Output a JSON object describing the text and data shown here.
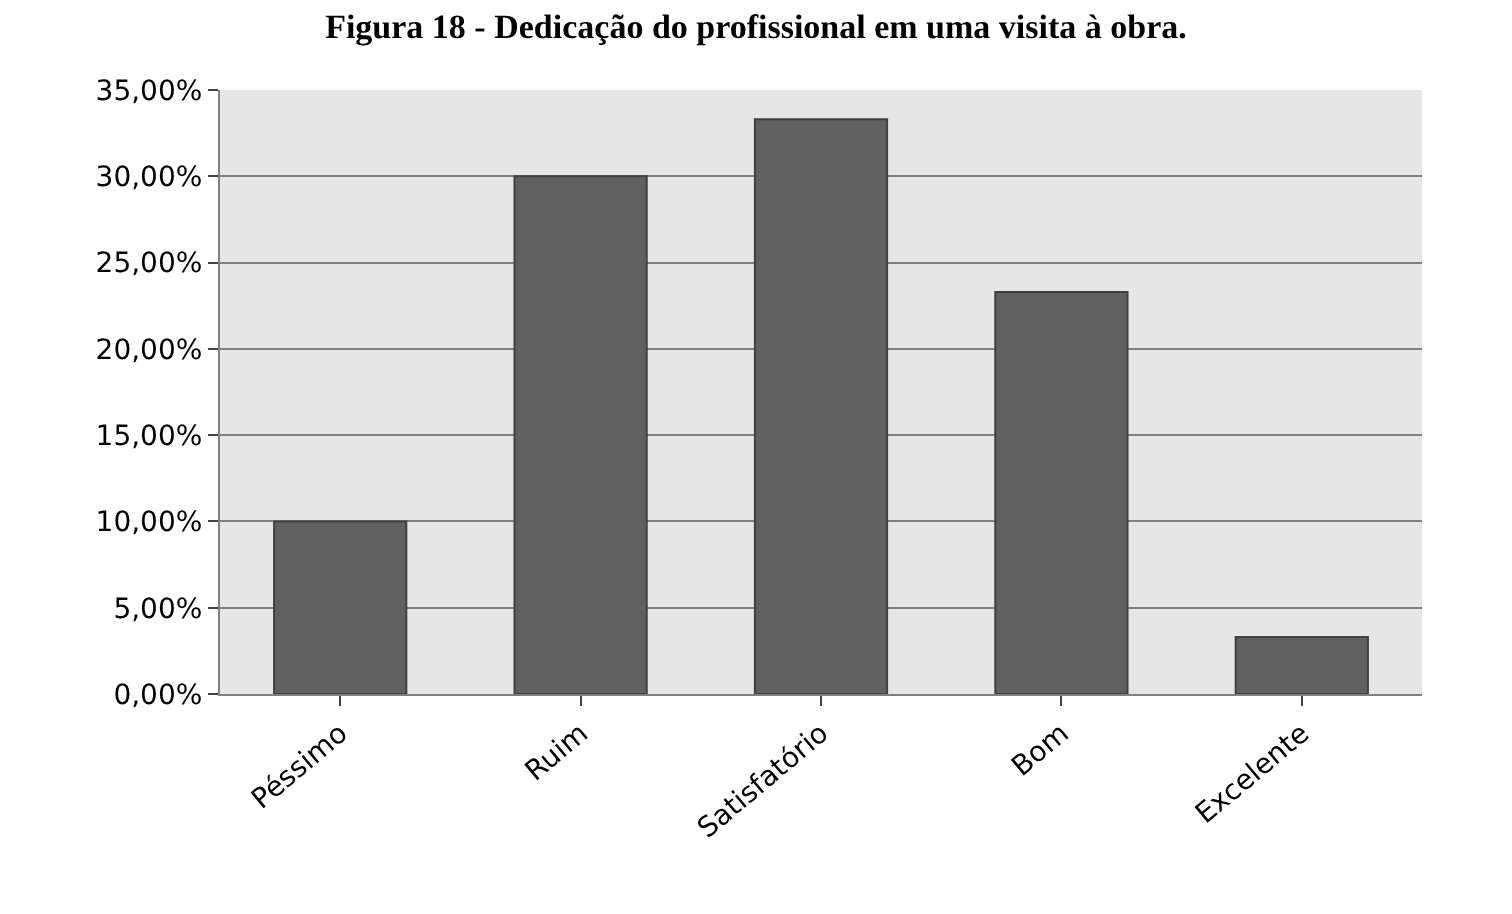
{
  "chart_data": {
    "type": "bar",
    "title": "Figura 18 - Dedicação do profissional em uma visita à obra.",
    "categories": [
      "Péssimo",
      "Ruim",
      "Satisfatório",
      "Bom",
      "Excelente"
    ],
    "values": [
      10.0,
      30.0,
      33.3,
      23.3,
      3.3
    ],
    "color": "#606060",
    "ylim": [
      0,
      35
    ],
    "yticks": [
      {
        "value": 0,
        "label": "0,00%"
      },
      {
        "value": 5,
        "label": "5,00%"
      },
      {
        "value": 10,
        "label": "10,00%"
      },
      {
        "value": 15,
        "label": "15,00%"
      },
      {
        "value": 20,
        "label": "20,00%"
      },
      {
        "value": 25,
        "label": "25,00%"
      },
      {
        "value": 30,
        "label": "30,00%"
      },
      {
        "value": 35,
        "label": "35,00%"
      }
    ],
    "grid": "y"
  }
}
